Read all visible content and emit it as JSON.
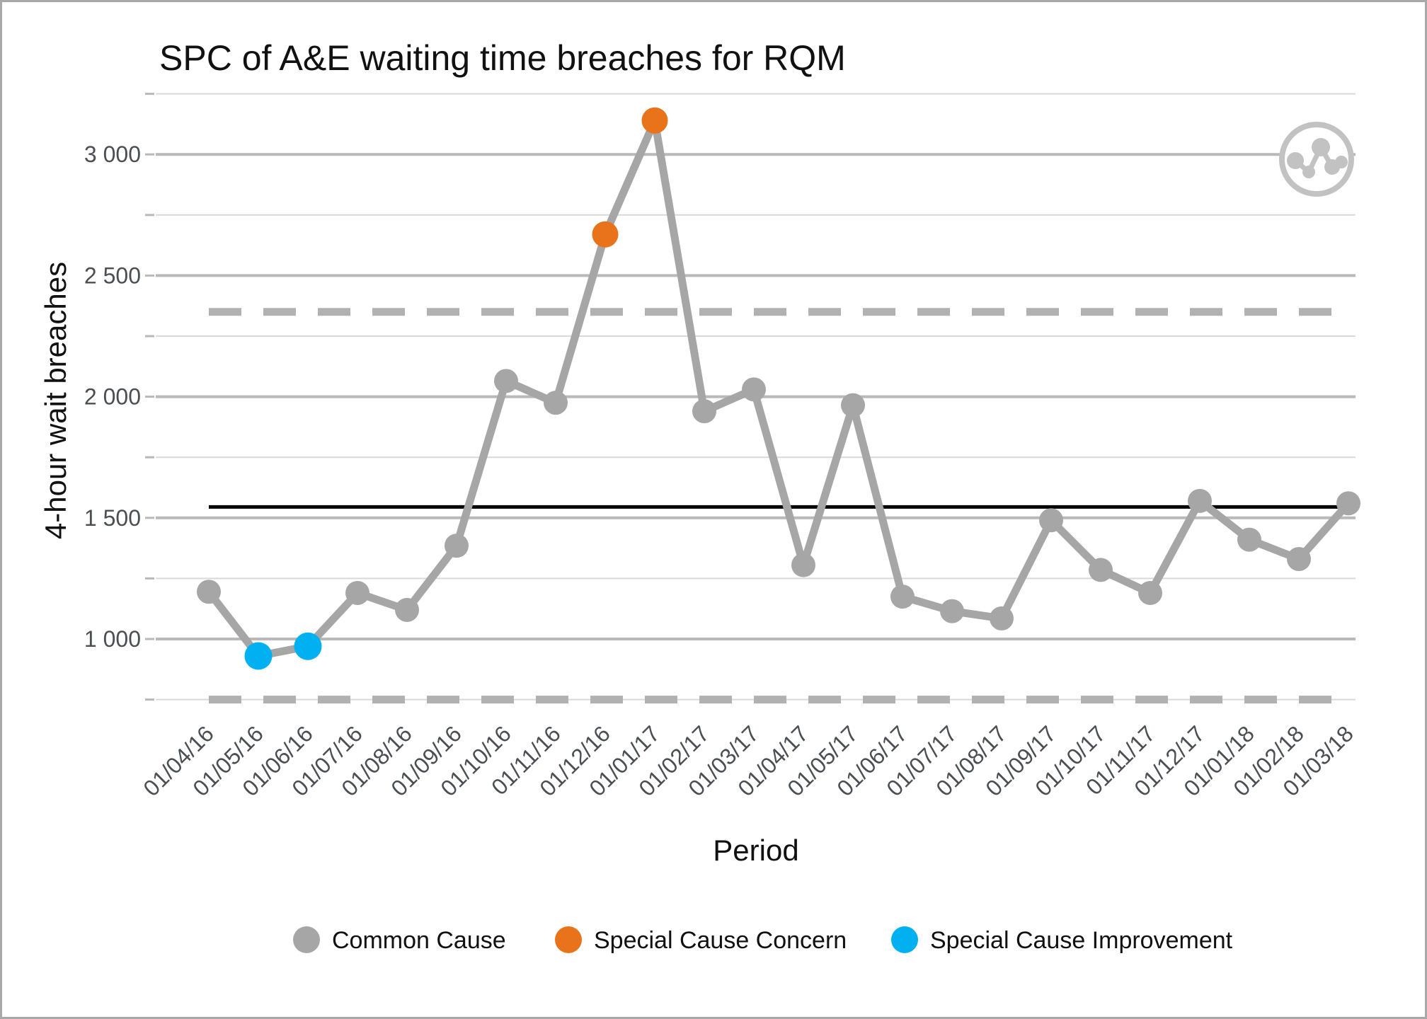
{
  "title": "SPC of A&E waiting time breaches for RQM",
  "y_axis": {
    "label": "4-hour wait breaches",
    "tick_values": [
      1000,
      1500,
      2000,
      2500,
      3000
    ],
    "tick_labels": [
      "1 000",
      "1 500",
      "2 000",
      "2 500",
      "3 000"
    ]
  },
  "x_axis": {
    "label": "Period"
  },
  "legend": [
    {
      "key": "common",
      "label": "Common Cause"
    },
    {
      "key": "concern",
      "label": "Special Cause Concern"
    },
    {
      "key": "improvement",
      "label": "Special Cause Improvement"
    }
  ],
  "colors": {
    "common": "#a6a6a6",
    "concern": "#e8731a",
    "improvement": "#00b0f0",
    "series_line": "#a6a6a6",
    "mean_line": "#000000",
    "limit_line": "#b1b1b1",
    "grid_major": "#b9b9b9",
    "grid_minor": "#d9d9d9",
    "tick_text": "#4b4f54",
    "icon_gray": "#c2c2c2"
  },
  "chart_data": {
    "type": "line",
    "title": "SPC of A&E waiting time breaches for RQM",
    "xlabel": "Period",
    "ylabel": "4-hour wait breaches",
    "x": [
      "01/04/16",
      "01/05/16",
      "01/06/16",
      "01/07/16",
      "01/08/16",
      "01/09/16",
      "01/10/16",
      "01/11/16",
      "01/12/16",
      "01/01/17",
      "01/02/17",
      "01/03/17",
      "01/04/17",
      "01/05/17",
      "01/06/17",
      "01/07/17",
      "01/08/17",
      "01/09/17",
      "01/10/17",
      "01/11/17",
      "01/12/17",
      "01/01/18",
      "01/02/18",
      "01/03/18"
    ],
    "series": [
      {
        "name": "4-hour wait breaches",
        "values": [
          1195,
          930,
          970,
          1190,
          1120,
          1385,
          2065,
          1975,
          2670,
          3140,
          1940,
          2030,
          1305,
          1965,
          1175,
          1115,
          1085,
          1490,
          1285,
          1190,
          1570,
          1410,
          1330,
          1560
        ]
      }
    ],
    "point_categories": [
      "common",
      "improvement",
      "improvement",
      "common",
      "common",
      "common",
      "common",
      "common",
      "concern",
      "concern",
      "common",
      "common",
      "common",
      "common",
      "common",
      "common",
      "common",
      "common",
      "common",
      "common",
      "common",
      "common",
      "common",
      "common"
    ],
    "mean": 1545,
    "upper_control_limit": 2350,
    "lower_control_limit": 750,
    "ylim": [
      700,
      3300
    ],
    "grid_interval": 250,
    "label_interval": 500,
    "grid": true,
    "legend_position": "bottom"
  }
}
